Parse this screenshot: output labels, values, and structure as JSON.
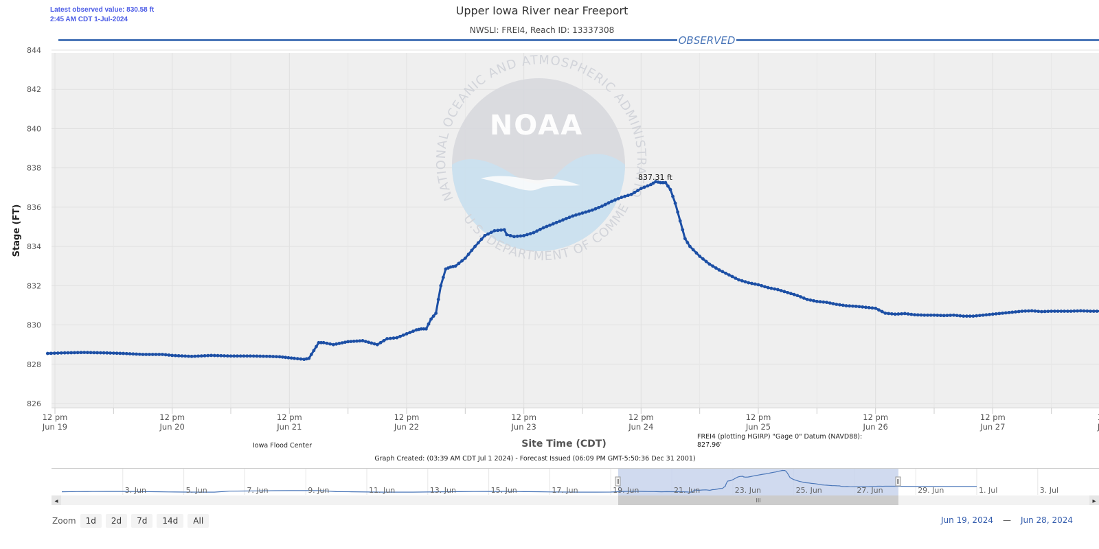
{
  "latest": {
    "line1": "Latest observed value: 830.58 ft",
    "line2": "2:45 AM CDT 1-Jul-2024"
  },
  "title": "Upper Iowa River near Freeport",
  "subtitle": "NWSLI: FREI4, Reach ID: 13337308",
  "observed_label": "OBSERVED",
  "watermark": {
    "text_top": "NATIONAL OCEANIC AND ATMOSPHERIC ADMINISTRATION",
    "text_bottom": "U.S. DEPARTMENT OF COMMERCE",
    "logo": "NOAA"
  },
  "notes": {
    "credit": "Iowa Flood Center",
    "datum_line1": "FREI4 (plotting HGIRP) \"Gage 0\" Datum (NAVD88):",
    "datum_line2": "827.96'",
    "created": "Graph Created: (03:39 AM CDT Jul 1 2024) - Forecast Issued (06:09 PM GMT-5:50:36 Dec 31 2001)"
  },
  "peak_label": "837.31 ft",
  "navigator": {
    "labels": [
      "3. Jun",
      "5. Jun",
      "7. Jun",
      "9. Jun",
      "11. Jun",
      "13. Jun",
      "15. Jun",
      "17. Jun",
      "19. Jun",
      "21. Jun",
      "23. Jun",
      "25. Jun",
      "27. Jun",
      "29. Jun",
      "1. Jul",
      "3. Jul"
    ],
    "left_arrow": "◂",
    "right_arrow": "▸",
    "grip": "III"
  },
  "zoom": {
    "label": "Zoom",
    "buttons": [
      "1d",
      "2d",
      "7d",
      "14d",
      "All"
    ]
  },
  "range": {
    "from": "Jun 19, 2024",
    "dash": "—",
    "to": "Jun 28, 2024"
  },
  "colors": {
    "series": "#1c4fa5",
    "plot_bg": "#efefef",
    "observed_line": "#4a76b8",
    "navigator_fill": "#c8d3ec"
  },
  "chart_data": {
    "type": "line",
    "title": "Upper Iowa River near Freeport",
    "subtitle": "NWSLI: FREI4, Reach ID: 13337308",
    "xlabel": "Site Time (CDT)",
    "ylabel": "Stage (FT)",
    "ylim": [
      826,
      844
    ],
    "yticks": [
      "826",
      "828",
      "830",
      "832",
      "834",
      "836",
      "838",
      "840",
      "842",
      "844"
    ],
    "xlim_hours_note": "",
    "xticks": [
      {
        "line1": "12 pm",
        "line2": "Jun 19",
        "t": 12
      },
      {
        "line1": "12 pm",
        "line2": "Jun 20",
        "t": 36
      },
      {
        "line1": "12 pm",
        "line2": "Jun 21",
        "t": 60
      },
      {
        "line1": "12 pm",
        "line2": "Jun 22",
        "t": 84
      },
      {
        "line1": "12 pm",
        "line2": "Jun 23",
        "t": 108
      },
      {
        "line1": "12 pm",
        "line2": "Jun 24",
        "t": 132
      },
      {
        "line1": "12 pm",
        "line2": "Jun 25",
        "t": 156
      },
      {
        "line1": "12 pm",
        "line2": "Jun 26",
        "t": 180
      },
      {
        "line1": "12 pm",
        "line2": "Jun 27",
        "t": 204
      },
      {
        "line1": "12 pm",
        "line2": "Jun 28",
        "t": 228
      }
    ],
    "grid": true,
    "series": [
      {
        "name": "Observed",
        "x": [
          10.5,
          14,
          18,
          22,
          26,
          30,
          34,
          36,
          40,
          44,
          48,
          52,
          56,
          58,
          61,
          63,
          64,
          65,
          66,
          67,
          69,
          72,
          75,
          78,
          80,
          82,
          84,
          86,
          87,
          88,
          89,
          90,
          91,
          92,
          93,
          94,
          96,
          98,
          100,
          102,
          104,
          104.5,
          106,
          108,
          110,
          112,
          114,
          116,
          118,
          120,
          122,
          124,
          126,
          128,
          130,
          132,
          134,
          135,
          136,
          137,
          138,
          139,
          140,
          141,
          142,
          144,
          146,
          148,
          150,
          152,
          154,
          156,
          158,
          160,
          162,
          164,
          166,
          168,
          170,
          172,
          174,
          176,
          178,
          180,
          182,
          184,
          186,
          188,
          190,
          192,
          194,
          196,
          198,
          200,
          202,
          204,
          206,
          208,
          210,
          212,
          214,
          216,
          218,
          220,
          222,
          224,
          226,
          229
        ],
        "y": [
          828.55,
          828.58,
          828.6,
          828.58,
          828.55,
          828.5,
          828.5,
          828.45,
          828.4,
          828.45,
          828.42,
          828.42,
          828.4,
          828.38,
          828.3,
          828.25,
          828.3,
          828.7,
          829.1,
          829.1,
          829.0,
          829.15,
          829.2,
          829.0,
          829.3,
          829.35,
          829.55,
          829.75,
          829.8,
          829.8,
          830.3,
          830.6,
          832.0,
          832.85,
          832.95,
          833.0,
          833.4,
          834.0,
          834.55,
          834.8,
          834.85,
          834.6,
          834.5,
          834.55,
          834.7,
          834.95,
          835.15,
          835.35,
          835.55,
          835.7,
          835.85,
          836.05,
          836.3,
          836.5,
          836.65,
          836.95,
          837.15,
          837.3,
          837.25,
          837.25,
          836.9,
          836.2,
          835.3,
          834.4,
          834.0,
          833.5,
          833.1,
          832.8,
          832.55,
          832.3,
          832.15,
          832.05,
          831.9,
          831.8,
          831.65,
          831.5,
          831.3,
          831.2,
          831.15,
          831.05,
          830.98,
          830.95,
          830.9,
          830.85,
          830.6,
          830.55,
          830.58,
          830.52,
          830.5,
          830.5,
          830.48,
          830.5,
          830.45,
          830.45,
          830.5,
          830.55,
          830.6,
          830.65,
          830.7,
          830.72,
          830.68,
          830.7,
          830.7,
          830.7,
          830.72,
          830.7,
          830.7,
          830.68
        ]
      }
    ],
    "peak_value": 837.31,
    "annotations": [
      "837.31 ft"
    ]
  }
}
